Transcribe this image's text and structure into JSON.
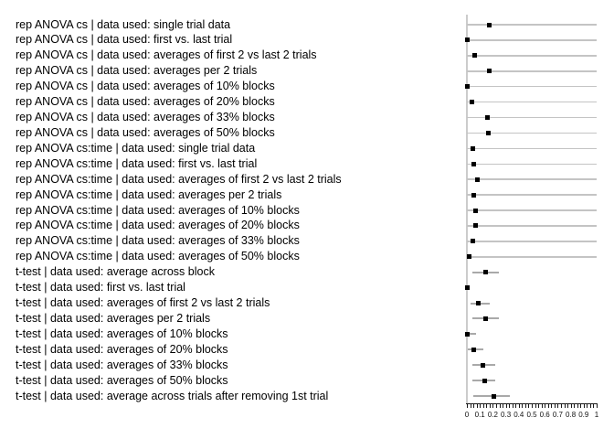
{
  "chart_data": {
    "type": "scatter",
    "title": "",
    "xlabel": "",
    "ylabel": "",
    "xlim": [
      0,
      1
    ],
    "grid": "horizontal gray row lines for ANOVA rows",
    "legend": "none",
    "x_tick_labels": [
      "0",
      "0.1",
      "0.2",
      "0.3",
      "0.4",
      "0.5",
      "0.6",
      "0.7",
      "0.8",
      "0.9",
      "1"
    ],
    "x_minor_tick_step": 0.025,
    "rows": [
      {
        "label": "rep ANOVA cs | data used: single trial data",
        "p": 0.17,
        "ci_low": 0,
        "ci_high": 1,
        "full_width_line": true
      },
      {
        "label": "rep ANOVA cs | data used: first vs. last trial",
        "p": 0.0,
        "ci_low": 0,
        "ci_high": 1,
        "full_width_line": true
      },
      {
        "label": "rep ANOVA cs | data used: averages of first 2 vs last 2 trials",
        "p": 0.06,
        "ci_low": 0,
        "ci_high": 1,
        "full_width_line": true
      },
      {
        "label": "rep ANOVA cs | data used: averages per 2 trials",
        "p": 0.17,
        "ci_low": 0,
        "ci_high": 1,
        "full_width_line": true
      },
      {
        "label": "rep ANOVA cs | data used: averages of 10% blocks",
        "p": 0.0,
        "ci_low": 0,
        "ci_high": 1,
        "full_width_line": true
      },
      {
        "label": "rep ANOVA cs | data used: averages of 20% blocks",
        "p": 0.04,
        "ci_low": 0,
        "ci_high": 1,
        "full_width_line": true
      },
      {
        "label": "rep ANOVA cs | data used: averages of 33% blocks",
        "p": 0.155,
        "ci_low": 0,
        "ci_high": 1,
        "full_width_line": true
      },
      {
        "label": "rep ANOVA cs | data used: averages of 50% blocks",
        "p": 0.165,
        "ci_low": 0,
        "ci_high": 1,
        "full_width_line": true
      },
      {
        "label": "rep ANOVA cs:time | data used: single trial data",
        "p": 0.045,
        "ci_low": 0,
        "ci_high": 1,
        "full_width_line": true
      },
      {
        "label": "rep ANOVA cs:time | data used: first vs. last trial",
        "p": 0.055,
        "ci_low": 0,
        "ci_high": 1,
        "full_width_line": true
      },
      {
        "label": "rep ANOVA cs:time | data used: averages of first 2 vs last 2 trials",
        "p": 0.08,
        "ci_low": 0,
        "ci_high": 1,
        "full_width_line": true
      },
      {
        "label": "rep ANOVA cs:time | data used: averages per 2 trials",
        "p": 0.055,
        "ci_low": 0,
        "ci_high": 1,
        "full_width_line": true
      },
      {
        "label": "rep ANOVA cs:time | data used: averages of 10% blocks",
        "p": 0.07,
        "ci_low": 0,
        "ci_high": 1,
        "full_width_line": true
      },
      {
        "label": "rep ANOVA cs:time | data used: averages of 20% blocks",
        "p": 0.065,
        "ci_low": 0,
        "ci_high": 1,
        "full_width_line": true
      },
      {
        "label": "rep ANOVA cs:time | data used: averages of 33% blocks",
        "p": 0.045,
        "ci_low": 0,
        "ci_high": 1,
        "full_width_line": true
      },
      {
        "label": "rep ANOVA cs:time | data used: averages of 50% blocks",
        "p": 0.015,
        "ci_low": 0,
        "ci_high": 1,
        "full_width_line": true
      },
      {
        "label": "t-test | data used: average across block",
        "p": 0.145,
        "ci_low": 0.04,
        "ci_high": 0.25,
        "full_width_line": false
      },
      {
        "label": "t-test | data used: first vs. last trial",
        "p": 0.0,
        "ci_low": 0,
        "ci_high": 0.02,
        "full_width_line": false
      },
      {
        "label": "t-test | data used: averages of first 2 vs last 2 trials",
        "p": 0.085,
        "ci_low": 0.03,
        "ci_high": 0.175,
        "full_width_line": false
      },
      {
        "label": "t-test | data used: averages per 2 trials",
        "p": 0.145,
        "ci_low": 0.04,
        "ci_high": 0.25,
        "full_width_line": false
      },
      {
        "label": "t-test | data used: averages of 10% blocks",
        "p": 0.005,
        "ci_low": 0,
        "ci_high": 0.07,
        "full_width_line": false
      },
      {
        "label": "t-test | data used: averages of 20% blocks",
        "p": 0.055,
        "ci_low": 0.005,
        "ci_high": 0.125,
        "full_width_line": false
      },
      {
        "label": "t-test | data used: averages of 33% blocks",
        "p": 0.125,
        "ci_low": 0.04,
        "ci_high": 0.215,
        "full_width_line": false
      },
      {
        "label": "t-test | data used: averages of 50% blocks",
        "p": 0.135,
        "ci_low": 0.04,
        "ci_high": 0.215,
        "full_width_line": false
      },
      {
        "label": "t-test | data used: average across trials after removing 1st trial",
        "p": 0.21,
        "ci_low": 0.05,
        "ci_high": 0.33,
        "full_width_line": false
      }
    ]
  },
  "colors": {
    "marker": "#000000",
    "full_width_line": "#c4c4c4",
    "ci_line": "#a9a9a9",
    "zero_reference_line": "#cccccc",
    "axis": "#1a1a1a",
    "text": "#000000"
  }
}
